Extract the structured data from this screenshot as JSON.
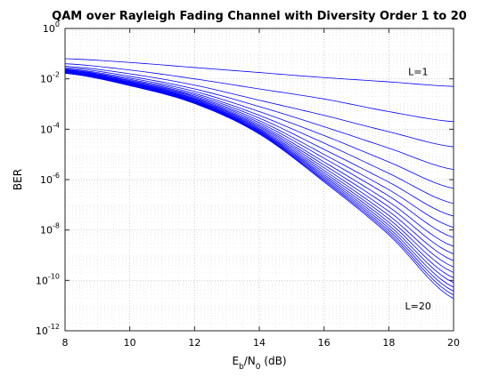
{
  "chart_data": {
    "type": "line",
    "title": "QAM over Rayleigh Fading Channel with Diversity Order 1 to 20",
    "xlabel": {
      "main": "E",
      "sub1": "b",
      "mid": "/N",
      "sub2": "0",
      "tail": " (dB)"
    },
    "ylabel": "BER",
    "xlim": [
      8,
      20
    ],
    "ylim_log10": [
      -12,
      0
    ],
    "yscale": "log",
    "grid": "major and minor dotted",
    "series_color": "#0000ff",
    "x_ticks": [
      "8",
      "10",
      "12",
      "14",
      "16",
      "18",
      "20"
    ],
    "y_tick_exponents": [
      "0",
      "-2",
      "-4",
      "-6",
      "-8",
      "-10",
      "-12"
    ],
    "y_tick_base": "10",
    "x": [
      8,
      10,
      12,
      14,
      16,
      18,
      20
    ],
    "series_log10": [
      [
        -1.2,
        -1.35,
        -1.55,
        -1.75,
        -1.95,
        -2.12,
        -2.3
      ],
      [
        -1.4,
        -1.65,
        -2.0,
        -2.4,
        -2.8,
        -3.3,
        -3.7
      ],
      [
        -1.5,
        -1.8,
        -2.25,
        -2.85,
        -3.45,
        -4.1,
        -4.7
      ],
      [
        -1.55,
        -1.9,
        -2.4,
        -3.1,
        -3.9,
        -4.75,
        -5.6
      ],
      [
        -1.6,
        -1.97,
        -2.5,
        -3.3,
        -4.25,
        -5.3,
        -6.35
      ],
      [
        -1.63,
        -2.02,
        -2.58,
        -3.45,
        -4.55,
        -5.75,
        -6.95
      ],
      [
        -1.65,
        -2.06,
        -2.64,
        -3.56,
        -4.8,
        -6.1,
        -7.45
      ],
      [
        -1.67,
        -2.09,
        -2.69,
        -3.66,
        -5.0,
        -6.4,
        -7.9
      ],
      [
        -1.69,
        -2.12,
        -2.73,
        -3.74,
        -5.15,
        -6.65,
        -8.3
      ],
      [
        -1.7,
        -2.14,
        -2.77,
        -3.81,
        -5.3,
        -6.88,
        -8.65
      ],
      [
        -1.71,
        -2.16,
        -2.8,
        -3.87,
        -5.42,
        -7.08,
        -8.95
      ],
      [
        -1.72,
        -2.18,
        -2.83,
        -3.92,
        -5.53,
        -7.26,
        -9.22
      ],
      [
        -1.73,
        -2.2,
        -2.86,
        -3.97,
        -5.63,
        -7.42,
        -9.47
      ],
      [
        -1.74,
        -2.21,
        -2.88,
        -4.01,
        -5.72,
        -7.56,
        -9.69
      ],
      [
        -1.75,
        -2.22,
        -2.9,
        -4.05,
        -5.8,
        -7.69,
        -9.9
      ],
      [
        -1.76,
        -2.23,
        -2.92,
        -4.08,
        -5.87,
        -7.81,
        -10.09
      ],
      [
        -1.76,
        -2.24,
        -2.94,
        -4.11,
        -5.93,
        -7.92,
        -10.27
      ],
      [
        -1.77,
        -2.25,
        -2.95,
        -4.14,
        -5.99,
        -8.02,
        -10.43
      ],
      [
        -1.77,
        -2.26,
        -2.97,
        -4.16,
        -6.04,
        -8.11,
        -10.58
      ],
      [
        -1.78,
        -2.27,
        -2.98,
        -4.19,
        -6.09,
        -8.19,
        -10.72
      ]
    ],
    "annotations": [
      {
        "text": "L=1",
        "x": 18.6,
        "y_log10": -1.85
      },
      {
        "text": "L=20",
        "x": 18.5,
        "y_log10": -11.15
      }
    ]
  }
}
